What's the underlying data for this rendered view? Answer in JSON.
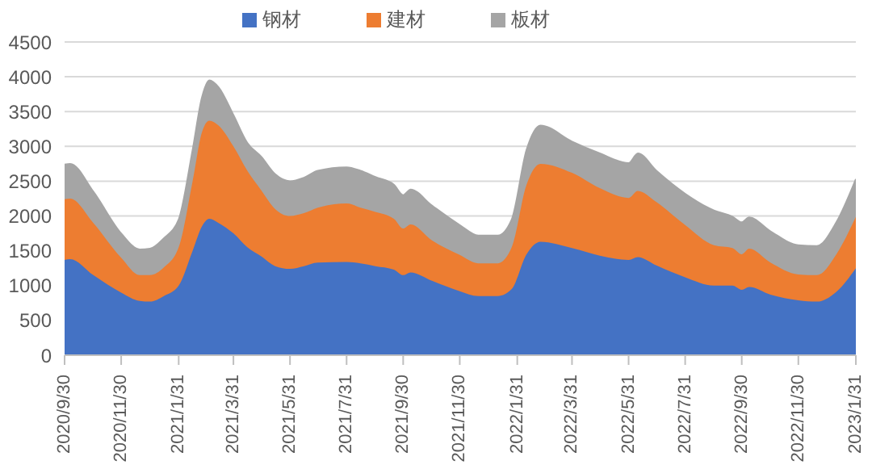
{
  "chart_data": {
    "type": "area",
    "stacked": true,
    "legend": "top",
    "grid": "y",
    "line_style": "solid",
    "marker": "none",
    "x": [
      "2020-09-30",
      "2020-10-06",
      "2020-10-31",
      "2020-11-30",
      "2020-12-20",
      "2020-12-31",
      "2021-01-15",
      "2021-01-31",
      "2021-02-15",
      "2021-02-25",
      "2021-03-05",
      "2021-03-15",
      "2021-03-31",
      "2021-04-15",
      "2021-04-30",
      "2021-05-15",
      "2021-05-31",
      "2021-06-15",
      "2021-06-30",
      "2021-07-31",
      "2021-08-15",
      "2021-08-31",
      "2021-09-20",
      "2021-09-30",
      "2021-10-08",
      "2021-10-31",
      "2021-11-30",
      "2021-12-20",
      "2022-01-10",
      "2022-01-25",
      "2022-02-10",
      "2022-02-25",
      "2022-03-31",
      "2022-04-30",
      "2022-05-31",
      "2022-06-10",
      "2022-06-30",
      "2022-07-31",
      "2022-08-31",
      "2022-09-20",
      "2022-09-30",
      "2022-10-08",
      "2022-10-31",
      "2022-11-30",
      "2022-12-20",
      "2023-01-10",
      "2023-01-31"
    ],
    "series": [
      {
        "name": "钢材",
        "color": "#4472c4",
        "values": [
          1370,
          1380,
          1150,
          900,
          780,
          770,
          850,
          1000,
          1500,
          1850,
          1960,
          1900,
          1750,
          1550,
          1420,
          1280,
          1240,
          1280,
          1330,
          1340,
          1320,
          1280,
          1230,
          1150,
          1190,
          1070,
          920,
          850,
          850,
          950,
          1450,
          1630,
          1540,
          1430,
          1370,
          1410,
          1290,
          1120,
          1000,
          1000,
          940,
          980,
          870,
          790,
          770,
          910,
          1250
        ]
      },
      {
        "name": "建材",
        "color": "#ed7d31",
        "values": [
          870,
          870,
          750,
          500,
          370,
          380,
          410,
          550,
          1000,
          1350,
          1410,
          1400,
          1250,
          1100,
          950,
          820,
          760,
          760,
          790,
          840,
          800,
          780,
          730,
          670,
          690,
          580,
          520,
          470,
          470,
          600,
          1000,
          1120,
          1080,
          970,
          890,
          950,
          910,
          750,
          580,
          540,
          510,
          550,
          460,
          370,
          380,
          540,
          740
        ]
      },
      {
        "name": "板材",
        "color": "#a5a5a5",
        "values": [
          500,
          500,
          450,
          350,
          370,
          380,
          420,
          400,
          450,
          500,
          580,
          550,
          450,
          400,
          480,
          500,
          500,
          510,
          530,
          520,
          530,
          500,
          490,
          480,
          500,
          500,
          430,
          400,
          400,
          400,
          500,
          550,
          450,
          500,
          500,
          540,
          450,
          450,
          500,
          450,
          460,
          450,
          450,
          420,
          420,
          460,
          540
        ]
      }
    ],
    "ylim": [
      0,
      4500
    ],
    "yticks": [
      0,
      500,
      1000,
      1500,
      2000,
      2500,
      3000,
      3500,
      4000,
      4500
    ],
    "xlim": [
      "2020-09-30",
      "2023-01-31"
    ],
    "xticks": [
      {
        "value": "2020-09-30",
        "label": "2020/9/30"
      },
      {
        "value": "2020-11-30",
        "label": "2020/11/30"
      },
      {
        "value": "2021-01-31",
        "label": "2021/1/31"
      },
      {
        "value": "2021-03-31",
        "label": "2021/3/31"
      },
      {
        "value": "2021-05-31",
        "label": "2021/5/31"
      },
      {
        "value": "2021-07-31",
        "label": "2021/7/31"
      },
      {
        "value": "2021-09-30",
        "label": "2021/9/30"
      },
      {
        "value": "2021-11-30",
        "label": "2021/11/30"
      },
      {
        "value": "2022-01-31",
        "label": "2022/1/31"
      },
      {
        "value": "2022-03-31",
        "label": "2022/3/31"
      },
      {
        "value": "2022-05-31",
        "label": "2022/5/31"
      },
      {
        "value": "2022-07-31",
        "label": "2022/7/31"
      },
      {
        "value": "2022-09-30",
        "label": "2022/9/30"
      },
      {
        "value": "2022-11-30",
        "label": "2022/11/30"
      },
      {
        "value": "2023-01-31",
        "label": "2023/1/31"
      }
    ]
  }
}
